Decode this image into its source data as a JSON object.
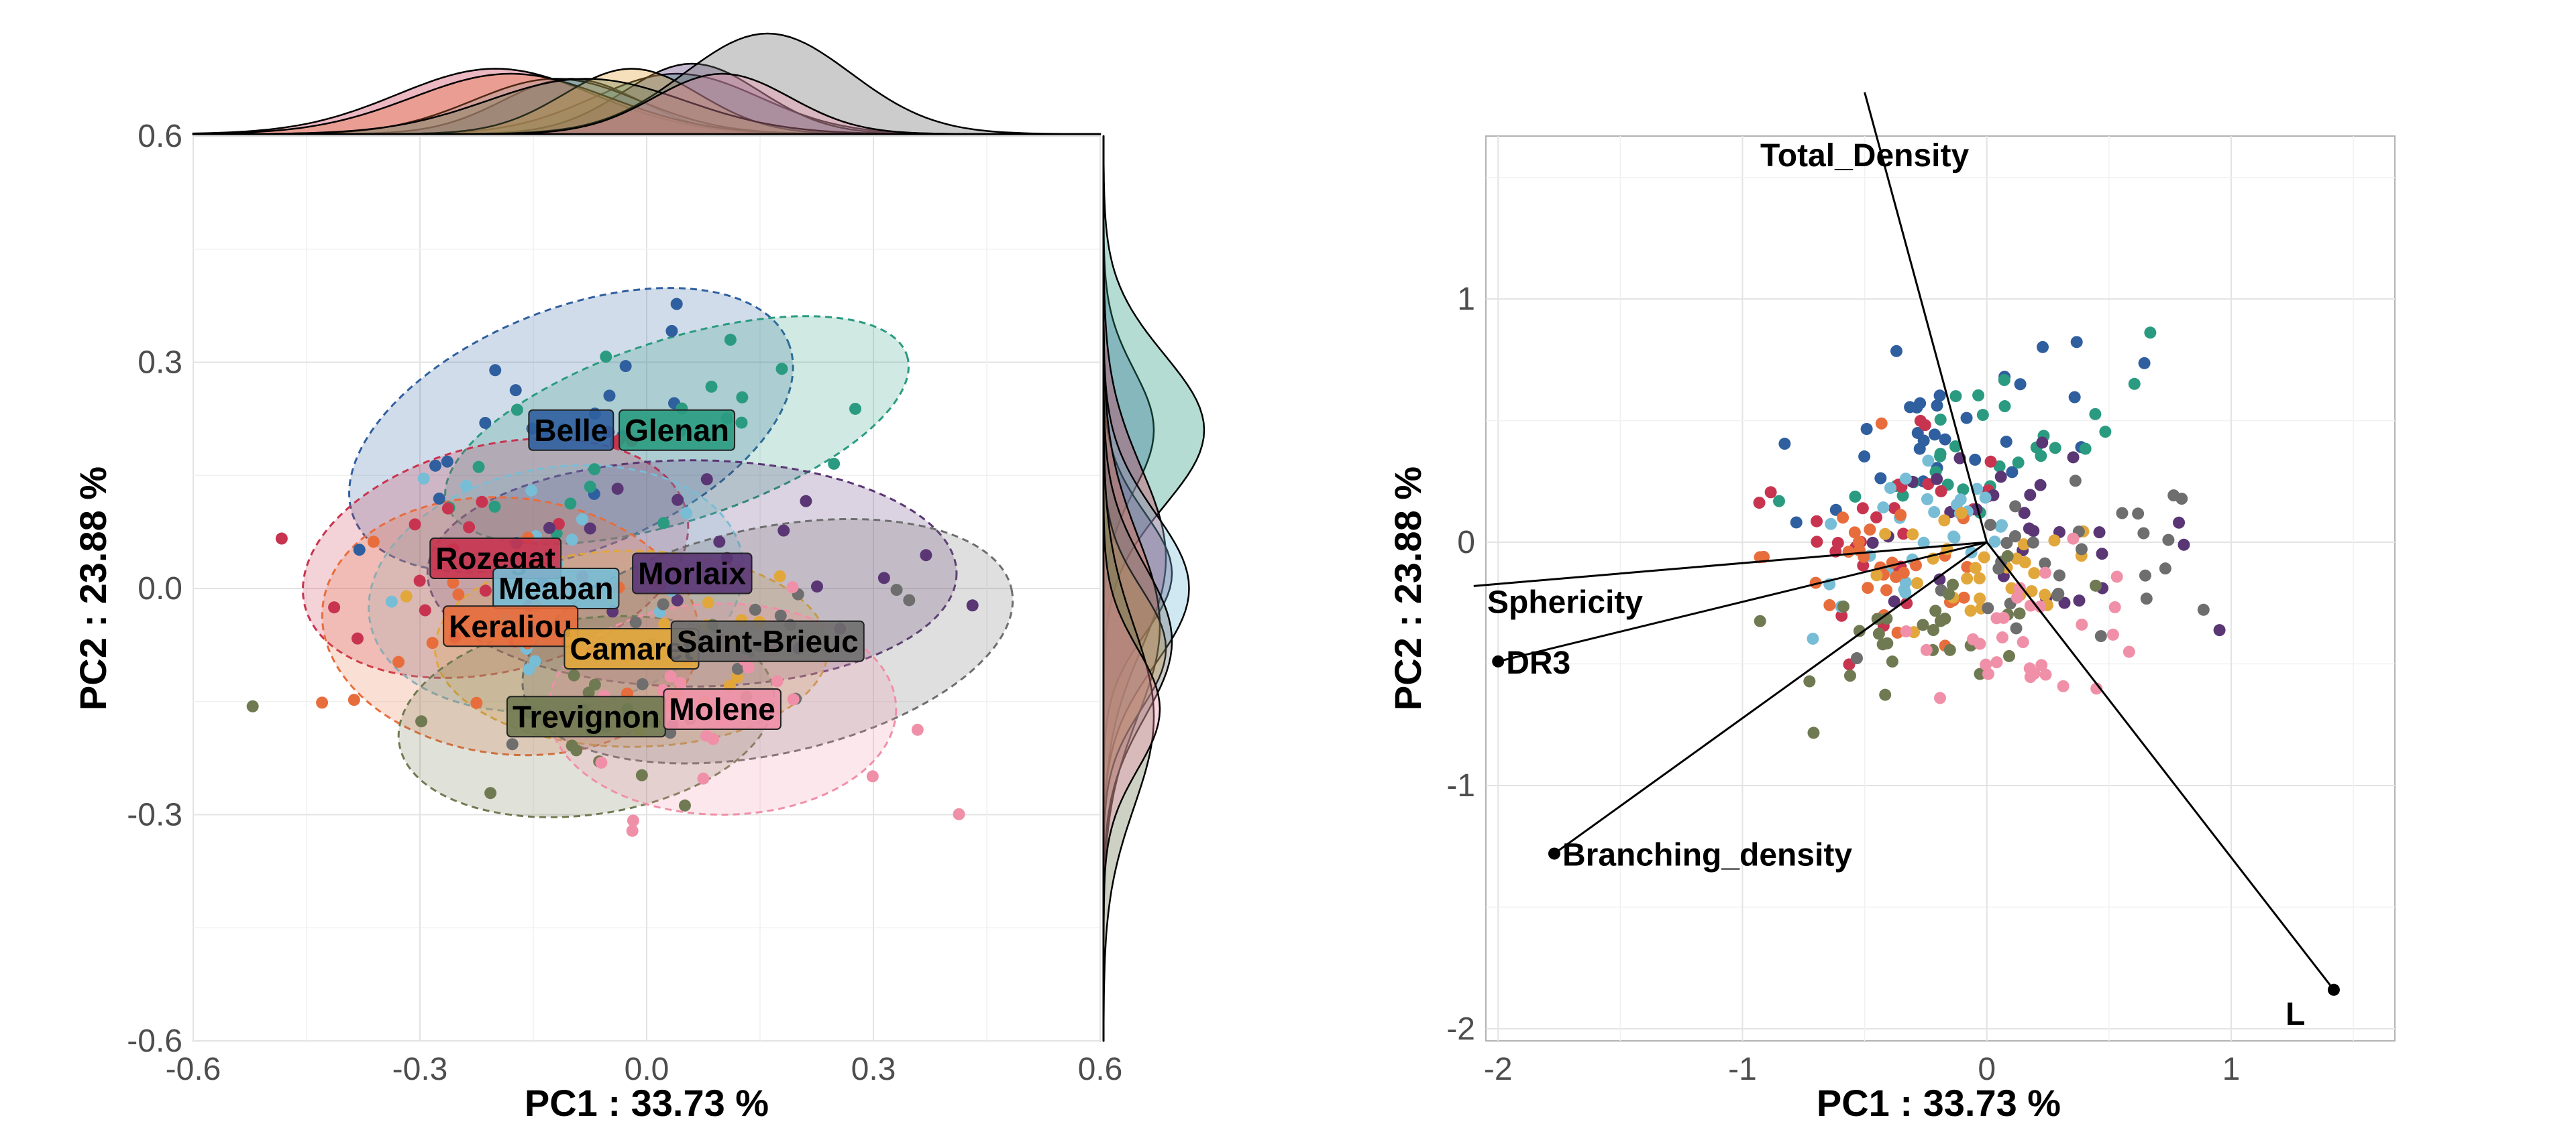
{
  "chart_data": [
    {
      "type": "scatter",
      "subtype": "pca-individuals-with-confidence-ellipses-and-marginal-densities",
      "xlabel": "PC1 :  33.73 %",
      "ylabel": "PC2 :  23.88 %",
      "xlim": [
        -0.6,
        0.6
      ],
      "ylim": [
        -0.6,
        0.6
      ],
      "x_ticks": [
        "-0.6",
        "-0.3",
        "0.0",
        "0.3",
        "0.6"
      ],
      "y_ticks": [
        "-0.6",
        "-0.3",
        "0.0",
        "0.3",
        "0.6"
      ],
      "grid": true,
      "groups": [
        {
          "name": "Belle",
          "color": "#2f5f9e",
          "center": [
            -0.1,
            0.21
          ],
          "radii": [
            0.31,
            0.16
          ],
          "angle": 22
        },
        {
          "name": "Glenan",
          "color": "#2a9b80",
          "center": [
            0.04,
            0.21
          ],
          "radii": [
            0.32,
            0.12
          ],
          "angle": 18
        },
        {
          "name": "Rozegat",
          "color": "#c8344f",
          "center": [
            -0.2,
            0.04
          ],
          "radii": [
            0.26,
            0.15
          ],
          "angle": 14
        },
        {
          "name": "Morlaix",
          "color": "#5a3675",
          "center": [
            0.06,
            0.02
          ],
          "radii": [
            0.35,
            0.15
          ],
          "angle": 0
        },
        {
          "name": "Meaban",
          "color": "#78bdd6",
          "center": [
            -0.12,
            0.0
          ],
          "radii": [
            0.25,
            0.16
          ],
          "angle": 10
        },
        {
          "name": "Keraliou",
          "color": "#e86d3c",
          "center": [
            -0.18,
            -0.05
          ],
          "radii": [
            0.25,
            0.17
          ],
          "angle": -6
        },
        {
          "name": "Camaret",
          "color": "#e2a73b",
          "center": [
            -0.02,
            -0.08
          ],
          "radii": [
            0.26,
            0.13
          ],
          "angle": 0
        },
        {
          "name": "Saint-Brieuc",
          "color": "#6e6e6e",
          "center": [
            0.16,
            -0.07
          ],
          "radii": [
            0.33,
            0.15
          ],
          "angle": 12
        },
        {
          "name": "Trevignon",
          "color": "#707a52",
          "center": [
            -0.08,
            -0.17
          ],
          "radii": [
            0.25,
            0.13
          ],
          "angle": 8
        },
        {
          "name": "Molene",
          "color": "#f090a8",
          "center": [
            0.1,
            -0.16
          ],
          "radii": [
            0.23,
            0.14
          ],
          "angle": 0
        }
      ],
      "marginal_x_density_peaks": {
        "Saint-Brieuc": 0.18
      },
      "marginal_y_density_peaks": {
        "Glenan": 0.21,
        "Meaban": 0.0
      }
    },
    {
      "type": "scatter",
      "subtype": "pca-biplot",
      "xlabel": "PC1 :  33.73 %",
      "ylabel": "PC2 :  23.88 %",
      "xlim": [
        -2.05,
        1.67
      ],
      "ylim": [
        -2.05,
        1.67
      ],
      "x_ticks": [
        "-2",
        "-1",
        "0",
        "1"
      ],
      "y_ticks": [
        "-2",
        "-1",
        "0",
        "1"
      ],
      "grid": true,
      "variables": [
        {
          "name": "Total_Density",
          "x": -0.5,
          "y": 1.85
        },
        {
          "name": "Sphericity",
          "x": -2.1,
          "y": -0.18
        },
        {
          "name": "DR3",
          "x": -2.0,
          "y": -0.49
        },
        {
          "name": "Branching_density",
          "x": -1.77,
          "y": -1.28
        },
        {
          "name": "L",
          "x": 1.42,
          "y": -1.84
        }
      ]
    }
  ]
}
